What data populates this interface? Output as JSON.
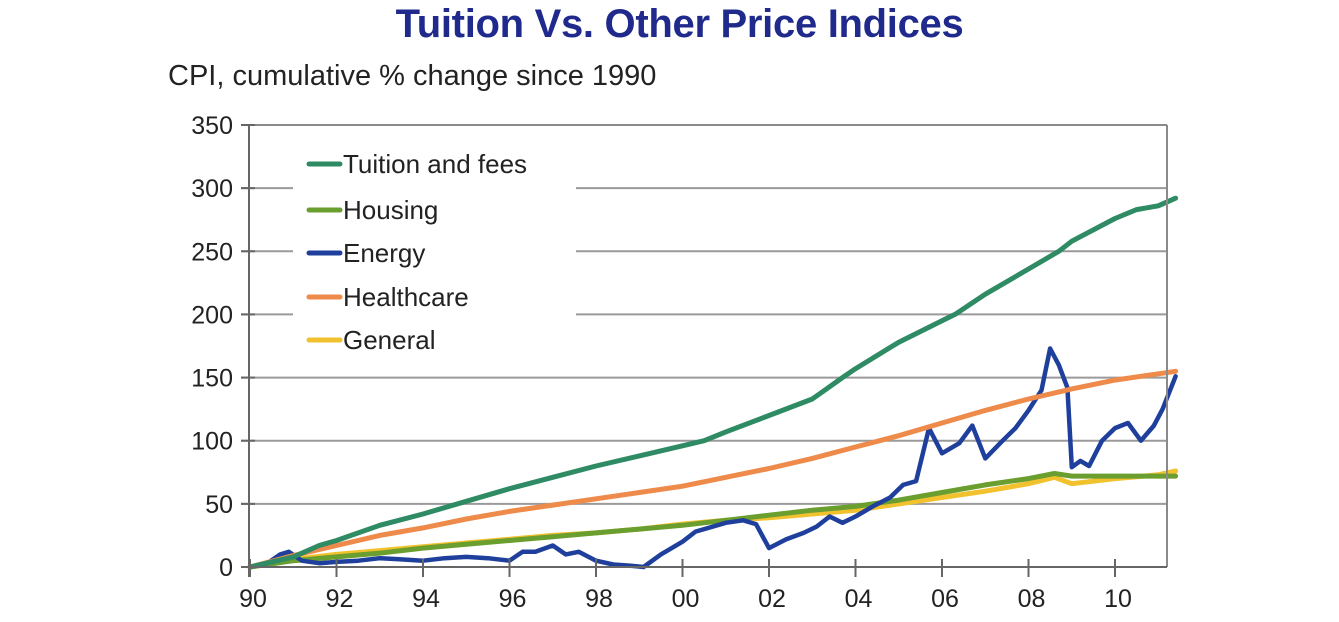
{
  "chart_data": {
    "type": "line",
    "title": "Tuition Vs. Other Price Indices",
    "subtitle": "CPI, cumulative % change since 1990",
    "xlabel": "",
    "ylabel": "CPI, cumulative % change since 1990",
    "xlim": [
      1990,
      2011.4
    ],
    "ylim": [
      0,
      350
    ],
    "grid": true,
    "legend_position": "top-left",
    "x_ticks": [
      {
        "value": 1990,
        "label": "90"
      },
      {
        "value": 1992,
        "label": "92"
      },
      {
        "value": 1994,
        "label": "94"
      },
      {
        "value": 1996,
        "label": "96"
      },
      {
        "value": 1998,
        "label": "98"
      },
      {
        "value": 2000,
        "label": "00"
      },
      {
        "value": 2002,
        "label": "02"
      },
      {
        "value": 2004,
        "label": "04"
      },
      {
        "value": 2006,
        "label": "06"
      },
      {
        "value": 2008,
        "label": "08"
      },
      {
        "value": 2010,
        "label": "10"
      }
    ],
    "y_ticks": [
      {
        "value": 0,
        "label": "0"
      },
      {
        "value": 50,
        "label": "50"
      },
      {
        "value": 100,
        "label": "100"
      },
      {
        "value": 150,
        "label": "150"
      },
      {
        "value": 200,
        "label": "200"
      },
      {
        "value": 250,
        "label": "250"
      },
      {
        "value": 300,
        "label": "300"
      },
      {
        "value": 350,
        "label": "350"
      }
    ],
    "draw_order": [
      "general",
      "housing",
      "energy",
      "healthcare",
      "tuition"
    ],
    "series": [
      {
        "key": "tuition",
        "name": "Tuition and fees",
        "color": "#2e8b63",
        "x": [
          1990,
          1991,
          1991.6,
          1992,
          1993,
          1994,
          1995,
          1996,
          1997,
          1998,
          1999,
          2000,
          2000.5,
          2001,
          2002,
          2003,
          2003.7,
          2004,
          2005,
          2006,
          2006.3,
          2007,
          2008,
          2008.7,
          2009,
          2010,
          2010.5,
          2011,
          2011.4
        ],
        "values": [
          0,
          8,
          17,
          21,
          33,
          42,
          52,
          62,
          71,
          80,
          88,
          96,
          100,
          107,
          120,
          133,
          150,
          157,
          178,
          195,
          200,
          216,
          236,
          250,
          258,
          276,
          283,
          286,
          292
        ]
      },
      {
        "key": "housing",
        "name": "Housing",
        "color": "#6a9e2f",
        "x": [
          1990,
          1991,
          1992,
          1993,
          1994,
          1995,
          1996,
          1997,
          1998,
          1999,
          2000,
          2001,
          2002,
          2003,
          2004,
          2005,
          2006,
          2007,
          2008,
          2008.6,
          2009,
          2010,
          2011,
          2011.4
        ],
        "values": [
          0,
          5,
          8,
          11,
          15,
          18,
          21,
          24,
          27,
          30,
          33,
          37,
          41,
          45,
          48,
          53,
          59,
          65,
          70,
          74,
          72,
          72,
          72,
          72
        ]
      },
      {
        "key": "energy",
        "name": "Energy",
        "color": "#1f3f9c",
        "x": [
          1990,
          1990.4,
          1990.7,
          1990.9,
          1991.2,
          1991.6,
          1992,
          1992.5,
          1993,
          1993.5,
          1994,
          1994.5,
          1995,
          1995.5,
          1996,
          1996.3,
          1996.6,
          1997,
          1997.3,
          1997.6,
          1998,
          1998.4,
          1998.8,
          1999.1,
          1999.5,
          2000,
          2000.3,
          2000.7,
          2001,
          2001.4,
          2001.7,
          2002,
          2002.4,
          2002.8,
          2003.1,
          2003.4,
          2003.7,
          2004,
          2004.4,
          2004.8,
          2005.1,
          2005.4,
          2005.7,
          2006,
          2006.4,
          2006.7,
          2007,
          2007.4,
          2007.7,
          2008,
          2008.3,
          2008.5,
          2008.7,
          2008.9,
          2009.0,
          2009.2,
          2009.4,
          2009.7,
          2010,
          2010.3,
          2010.6,
          2010.9,
          2011.1,
          2011.4
        ],
        "values": [
          0,
          3,
          10,
          12,
          5,
          3,
          4,
          5,
          7,
          6,
          5,
          7,
          8,
          7,
          5,
          12,
          12,
          17,
          10,
          12,
          5,
          2,
          1,
          0,
          10,
          20,
          28,
          32,
          35,
          37,
          34,
          15,
          22,
          27,
          32,
          40,
          35,
          40,
          48,
          55,
          65,
          68,
          110,
          90,
          98,
          112,
          86,
          100,
          110,
          124,
          140,
          173,
          160,
          142,
          79,
          84,
          80,
          100,
          110,
          114,
          100,
          112,
          125,
          151
        ]
      },
      {
        "key": "healthcare",
        "name": "Healthcare",
        "color": "#ee8a4a",
        "x": [
          1990,
          1991,
          1992,
          1993,
          1994,
          1995,
          1996,
          1997,
          1998,
          1999,
          2000,
          2001,
          2002,
          2003,
          2004,
          2005,
          2006,
          2007,
          2008,
          2009,
          2010,
          2011,
          2011.4
        ],
        "values": [
          0,
          9,
          17,
          25,
          31,
          38,
          44,
          49,
          54,
          59,
          64,
          71,
          78,
          86,
          95,
          104,
          114,
          124,
          133,
          141,
          148,
          153,
          155
        ]
      },
      {
        "key": "general",
        "name": "General",
        "color": "#f2c12e",
        "x": [
          1990,
          1991,
          1992,
          1993,
          1994,
          1995,
          1996,
          1997,
          1998,
          1999,
          2000,
          2001,
          2002,
          2003,
          2004,
          2005,
          2006,
          2007,
          2008,
          2008.6,
          2009,
          2010,
          2011,
          2011.4
        ],
        "values": [
          0,
          6,
          10,
          13,
          16,
          19,
          22,
          25,
          27,
          30,
          34,
          37,
          39,
          42,
          45,
          50,
          55,
          60,
          66,
          71,
          66,
          70,
          73,
          76
        ]
      }
    ]
  }
}
